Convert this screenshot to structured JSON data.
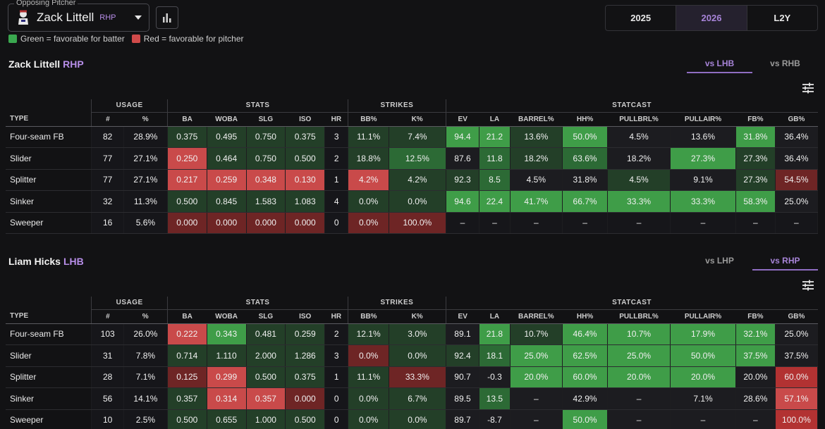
{
  "header": {
    "opposing_label": "Opposing Pitcher",
    "pitcher_name": "Zack Littell",
    "pitcher_hand": "RHP",
    "chart_button_icon": "bar-chart-icon",
    "legend_green": "Green = favorable for batter",
    "legend_red": "Red = favorable for pitcher",
    "year_tabs": [
      "2025",
      "2026",
      "L2Y"
    ],
    "active_year": "2026"
  },
  "colors": {
    "accent": "#a784d8",
    "g3": "#2f8c3f",
    "g2": "#3f9d48",
    "g1": "#2c6a35",
    "g0": "#233f28",
    "r3": "#b23232",
    "r2": "#c94a4a",
    "r1": "#6e2525",
    "r0": "#3d2323",
    "n": "#16161a",
    "d": "#1c1c20"
  },
  "groups": [
    "USAGE",
    "STATS",
    "STRIKES",
    "STATCAST"
  ],
  "columns": [
    "TYPE",
    "#",
    "%",
    "BA",
    "WOBA",
    "SLG",
    "ISO",
    "HR",
    "BB%",
    "K%",
    "EV",
    "LA",
    "BARREL%",
    "HH%",
    "PULLBRL%",
    "PULLAIR%",
    "FB%",
    "GB%"
  ],
  "sections": [
    {
      "name": "Zack Littell",
      "hand": "RHP",
      "tabs": [
        "vs LHB",
        "vs RHB"
      ],
      "active_tab": "vs LHB",
      "rows": [
        {
          "type": "Four-seam FB",
          "cells": [
            "82",
            "28.9%",
            "0.375",
            "0.495",
            "0.750",
            "0.375",
            "3",
            "11.1%",
            "7.4%",
            "94.4",
            "21.2",
            "13.6%",
            "50.0%",
            "4.5%",
            "13.6%",
            "31.8%",
            "36.4%"
          ],
          "heat": [
            "n",
            "n",
            "g0",
            "g0",
            "g0",
            "g0",
            "n",
            "g0",
            "g0",
            "g2",
            "g2",
            "g0",
            "g2",
            "d",
            "d",
            "g2",
            "d"
          ]
        },
        {
          "type": "Slider",
          "cells": [
            "77",
            "27.1%",
            "0.250",
            "0.464",
            "0.750",
            "0.500",
            "2",
            "18.8%",
            "12.5%",
            "87.6",
            "11.8",
            "18.2%",
            "63.6%",
            "18.2%",
            "27.3%",
            "27.3%",
            "36.4%"
          ],
          "heat": [
            "n",
            "n",
            "r2",
            "g0",
            "g0",
            "g0",
            "n",
            "g0",
            "g1",
            "d",
            "g1",
            "g0",
            "g1",
            "d",
            "g2",
            "g0",
            "d"
          ]
        },
        {
          "type": "Splitter",
          "cells": [
            "77",
            "27.1%",
            "0.217",
            "0.259",
            "0.348",
            "0.130",
            "1",
            "4.2%",
            "4.2%",
            "92.3",
            "8.5",
            "4.5%",
            "31.8%",
            "4.5%",
            "9.1%",
            "27.3%",
            "54.5%"
          ],
          "heat": [
            "n",
            "n",
            "r2",
            "r2",
            "r2",
            "r2",
            "n",
            "r2",
            "g0",
            "g0",
            "g1",
            "d",
            "d",
            "g0",
            "d",
            "g0",
            "r1"
          ]
        },
        {
          "type": "Sinker",
          "cells": [
            "32",
            "11.3%",
            "0.500",
            "0.845",
            "1.583",
            "1.083",
            "4",
            "0.0%",
            "0.0%",
            "94.6",
            "22.4",
            "41.7%",
            "66.7%",
            "33.3%",
            "33.3%",
            "58.3%",
            "25.0%"
          ],
          "heat": [
            "n",
            "n",
            "g0",
            "g0",
            "g0",
            "g0",
            "n",
            "g0",
            "g0",
            "g2",
            "g2",
            "g2",
            "g2",
            "g2",
            "g2",
            "g2",
            "d"
          ]
        },
        {
          "type": "Sweeper",
          "cells": [
            "16",
            "5.6%",
            "0.000",
            "0.000",
            "0.000",
            "0.000",
            "0",
            "0.0%",
            "100.0%",
            "–",
            "–",
            "–",
            "–",
            "–",
            "–",
            "–",
            "–"
          ],
          "heat": [
            "n",
            "n",
            "r1",
            "r1",
            "r1",
            "r1",
            "n",
            "r1",
            "r1",
            "n",
            "n",
            "n",
            "n",
            "n",
            "n",
            "n",
            "n"
          ]
        }
      ]
    },
    {
      "name": "Liam Hicks",
      "hand": "LHB",
      "tabs": [
        "vs LHP",
        "vs RHP"
      ],
      "active_tab": "vs RHP",
      "rows": [
        {
          "type": "Four-seam FB",
          "cells": [
            "103",
            "26.0%",
            "0.222",
            "0.343",
            "0.481",
            "0.259",
            "2",
            "12.1%",
            "3.0%",
            "89.1",
            "21.8",
            "10.7%",
            "46.4%",
            "10.7%",
            "17.9%",
            "32.1%",
            "25.0%"
          ],
          "heat": [
            "n",
            "n",
            "r2",
            "g2",
            "g0",
            "g0",
            "n",
            "g0",
            "g0",
            "d",
            "g2",
            "g0",
            "g2",
            "g2",
            "g2",
            "g2",
            "d"
          ]
        },
        {
          "type": "Slider",
          "cells": [
            "31",
            "7.8%",
            "0.714",
            "1.110",
            "2.000",
            "1.286",
            "3",
            "0.0%",
            "0.0%",
            "92.4",
            "18.1",
            "25.0%",
            "62.5%",
            "25.0%",
            "50.0%",
            "37.5%",
            "37.5%"
          ],
          "heat": [
            "n",
            "n",
            "g0",
            "g0",
            "g0",
            "g0",
            "n",
            "r1",
            "g0",
            "g0",
            "g1",
            "g2",
            "g2",
            "g2",
            "g2",
            "g2",
            "d"
          ]
        },
        {
          "type": "Splitter",
          "cells": [
            "28",
            "7.1%",
            "0.125",
            "0.299",
            "0.500",
            "0.375",
            "1",
            "11.1%",
            "33.3%",
            "90.7",
            "-0.3",
            "20.0%",
            "60.0%",
            "20.0%",
            "20.0%",
            "20.0%",
            "60.0%"
          ],
          "heat": [
            "n",
            "n",
            "r1",
            "r2",
            "g0",
            "g0",
            "n",
            "g0",
            "r1",
            "d",
            "d",
            "g2",
            "g2",
            "g2",
            "g2",
            "d",
            "r3"
          ]
        },
        {
          "type": "Sinker",
          "cells": [
            "56",
            "14.1%",
            "0.357",
            "0.314",
            "0.357",
            "0.000",
            "0",
            "0.0%",
            "6.7%",
            "89.5",
            "13.5",
            "–",
            "42.9%",
            "–",
            "7.1%",
            "28.6%",
            "57.1%"
          ],
          "heat": [
            "n",
            "n",
            "g0",
            "r2",
            "r2",
            "r1",
            "n",
            "g0",
            "g0",
            "d",
            "g1",
            "d",
            "d",
            "d",
            "d",
            "d",
            "r2"
          ]
        },
        {
          "type": "Sweeper",
          "cells": [
            "10",
            "2.5%",
            "0.500",
            "0.655",
            "1.000",
            "0.500",
            "0",
            "0.0%",
            "0.0%",
            "89.7",
            "-8.7",
            "–",
            "50.0%",
            "–",
            "–",
            "–",
            "100.0%"
          ],
          "heat": [
            "n",
            "n",
            "g0",
            "g0",
            "g0",
            "g0",
            "n",
            "g0",
            "g0",
            "d",
            "d",
            "d",
            "g2",
            "d",
            "d",
            "d",
            "r3"
          ]
        }
      ]
    }
  ]
}
